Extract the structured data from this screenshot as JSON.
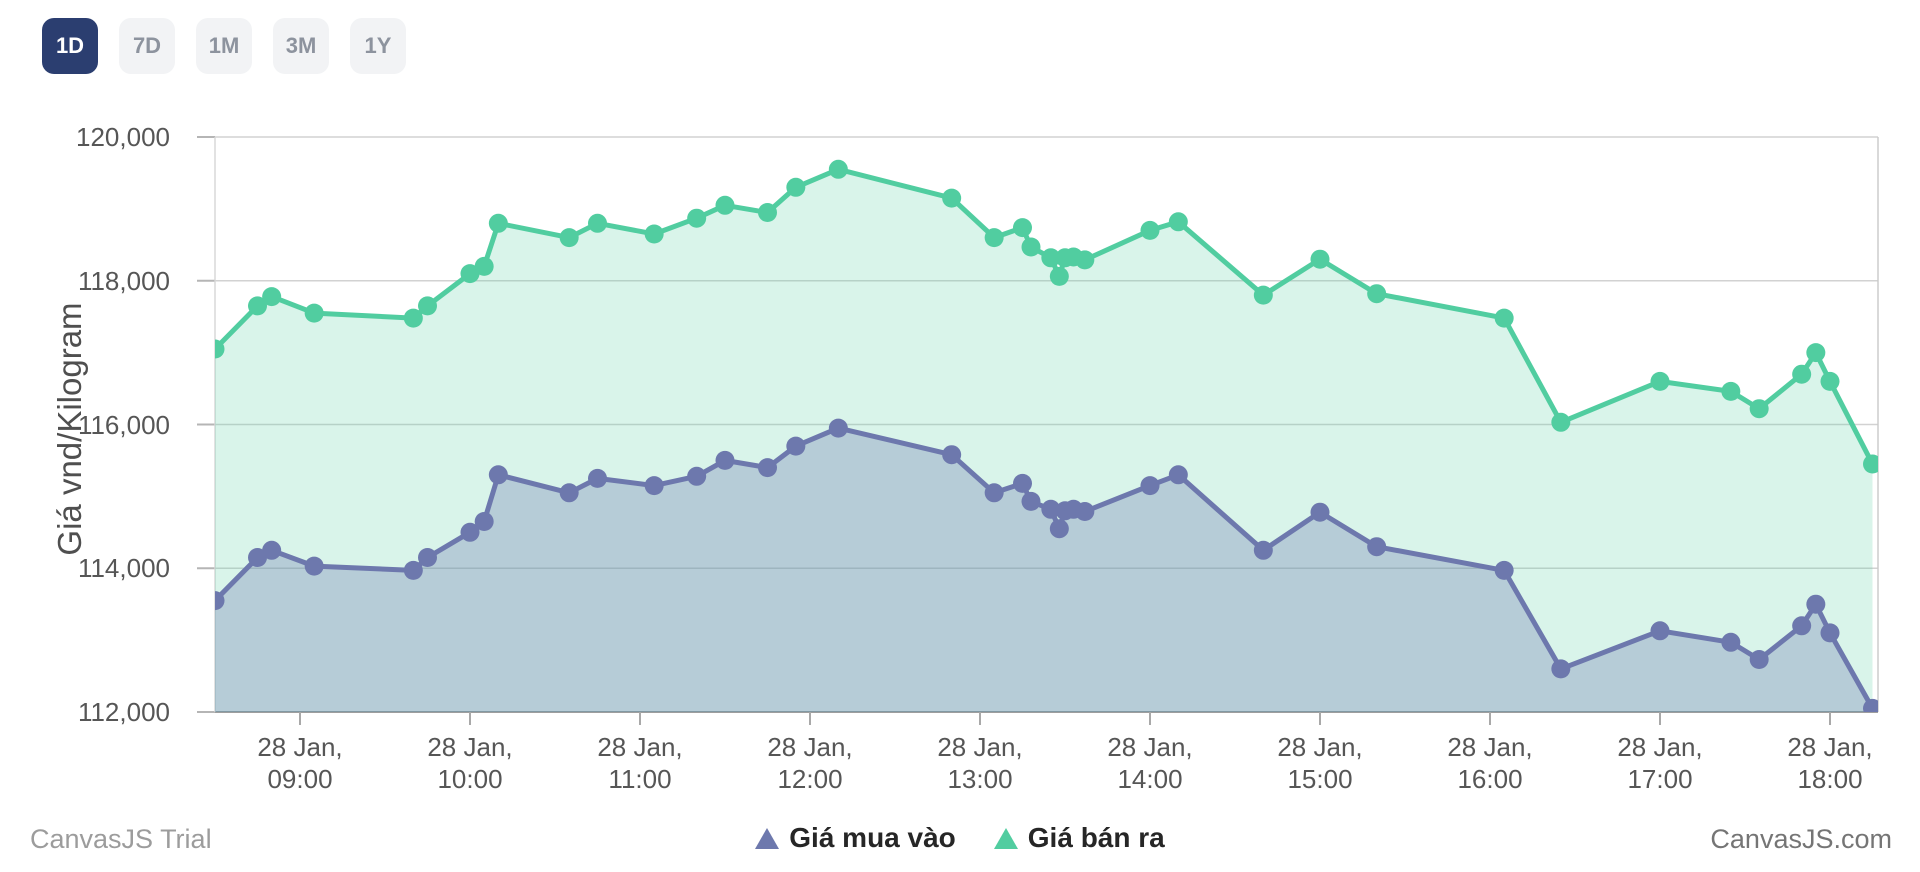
{
  "range_buttons": [
    {
      "label": "1D",
      "active": true
    },
    {
      "label": "7D",
      "active": false
    },
    {
      "label": "1M",
      "active": false
    },
    {
      "label": "3M",
      "active": false
    },
    {
      "label": "1Y",
      "active": false
    }
  ],
  "footer": {
    "trial_label": "CanvasJS Trial",
    "site_label": "CanvasJS.com"
  },
  "colors": {
    "active_button_bg": "#2B3E70",
    "inactive_button_bg": "#F2F3F5",
    "buy_series": "#6D78AD",
    "sell_series": "#51CDA0"
  },
  "chart_data": {
    "type": "area",
    "title": "",
    "xlabel": "",
    "ylabel": "Giá vnd/Kilogram",
    "ylim": [
      112000,
      120000
    ],
    "grid": true,
    "legend_position": "bottom",
    "y_ticks": [
      {
        "value": 112000,
        "label": "112,000"
      },
      {
        "value": 114000,
        "label": "114,000"
      },
      {
        "value": 116000,
        "label": "116,000"
      },
      {
        "value": 118000,
        "label": "118,000"
      },
      {
        "value": 120000,
        "label": "120,000"
      }
    ],
    "x_ticks": [
      {
        "time": "09:00",
        "line1": "28 Jan,",
        "line2": "09:00"
      },
      {
        "time": "10:00",
        "line1": "28 Jan,",
        "line2": "10:00"
      },
      {
        "time": "11:00",
        "line1": "28 Jan,",
        "line2": "11:00"
      },
      {
        "time": "12:00",
        "line1": "28 Jan,",
        "line2": "12:00"
      },
      {
        "time": "13:00",
        "line1": "28 Jan,",
        "line2": "13:00"
      },
      {
        "time": "14:00",
        "line1": "28 Jan,",
        "line2": "14:00"
      },
      {
        "time": "15:00",
        "line1": "28 Jan,",
        "line2": "15:00"
      },
      {
        "time": "16:00",
        "line1": "28 Jan,",
        "line2": "16:00"
      },
      {
        "time": "17:00",
        "line1": "28 Jan,",
        "line2": "17:00"
      },
      {
        "time": "18:00",
        "line1": "28 Jan,",
        "line2": "18:00"
      }
    ],
    "times": [
      "08:30",
      "08:45",
      "08:50",
      "09:05",
      "09:40",
      "09:45",
      "10:00",
      "10:05",
      "10:10",
      "10:35",
      "10:45",
      "11:05",
      "11:20",
      "11:30",
      "11:45",
      "11:55",
      "12:10",
      "12:50",
      "13:05",
      "13:15",
      "13:18",
      "13:25",
      "13:28",
      "13:30",
      "13:33",
      "13:37",
      "14:00",
      "14:10",
      "14:40",
      "15:00",
      "15:20",
      "16:05",
      "16:25",
      "17:00",
      "17:25",
      "17:35",
      "17:50",
      "17:55",
      "18:00",
      "18:15"
    ],
    "series": [
      {
        "name": "Giá mua vào",
        "color": "#6D78AD",
        "fill": "rgba(109,120,173,0.32)",
        "values": [
          113550,
          114150,
          114250,
          114030,
          113970,
          114150,
          114500,
          114650,
          115300,
          115050,
          115250,
          115150,
          115280,
          115500,
          115400,
          115700,
          115950,
          115580,
          115050,
          115180,
          114930,
          114820,
          114550,
          114800,
          114820,
          114790,
          115150,
          115300,
          114250,
          114780,
          114300,
          113970,
          112600,
          113130,
          112970,
          112730,
          113200,
          113500,
          113100,
          112050
        ]
      },
      {
        "name": "Giá bán ra",
        "color": "#51CDA0",
        "fill": "rgba(81,205,160,0.22)",
        "values": [
          117050,
          117650,
          117780,
          117550,
          117480,
          117650,
          118100,
          118200,
          118800,
          118600,
          118800,
          118650,
          118870,
          119050,
          118950,
          119300,
          119550,
          119150,
          118600,
          118740,
          118470,
          118320,
          118060,
          118320,
          118330,
          118290,
          118700,
          118820,
          117800,
          118300,
          117820,
          117480,
          116030,
          116600,
          116460,
          116220,
          116700,
          117000,
          116600,
          115450
        ]
      }
    ]
  }
}
